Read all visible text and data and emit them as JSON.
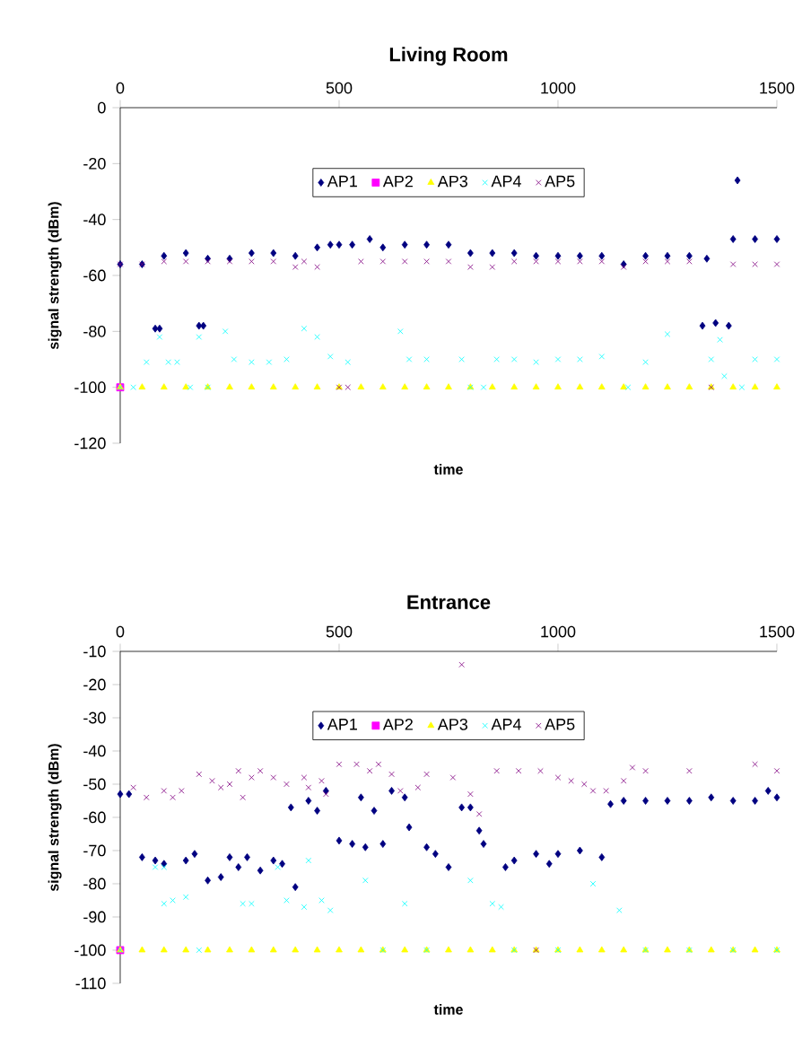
{
  "chart_data": [
    {
      "type": "scatter",
      "title": "Living Room",
      "xlabel": "time",
      "ylabel": "signal strength (dBm)",
      "xlim": [
        0,
        1500
      ],
      "xticks": [
        0,
        500,
        1000,
        1500
      ],
      "ylim": [
        -120,
        0
      ],
      "yticks": [
        -120,
        -100,
        -80,
        -60,
        -40,
        -20,
        0
      ],
      "legend": "top",
      "series": [
        {
          "name": "AP1",
          "color": "#000080",
          "marker": "diamond",
          "x": [
            0,
            50,
            100,
            150,
            200,
            250,
            300,
            350,
            400,
            450,
            480,
            500,
            530,
            570,
            600,
            650,
            700,
            750,
            800,
            850,
            900,
            950,
            1000,
            1050,
            1100,
            1150,
            1200,
            1250,
            1300,
            1340,
            1400,
            1450,
            1500,
            1410,
            80,
            90,
            180,
            190,
            1330,
            1360,
            1390
          ],
          "values": [
            -56,
            -56,
            -53,
            -52,
            -54,
            -54,
            -52,
            -52,
            -53,
            -50,
            -49,
            -49,
            -49,
            -47,
            -50,
            -49,
            -49,
            -49,
            -52,
            -52,
            -52,
            -53,
            -53,
            -53,
            -53,
            -56,
            -53,
            -53,
            -53,
            -54,
            -47,
            -47,
            -47,
            -26,
            -79,
            -79,
            -78,
            -78,
            -78,
            -77,
            -78
          ]
        },
        {
          "name": "AP2",
          "color": "#ff00ff",
          "marker": "square",
          "x": [
            0
          ],
          "values": [
            -100
          ]
        },
        {
          "name": "AP3",
          "color": "#ffff00",
          "marker": "triangle",
          "x": [
            0,
            50,
            100,
            150,
            200,
            250,
            300,
            350,
            400,
            450,
            500,
            550,
            600,
            650,
            700,
            750,
            800,
            850,
            900,
            950,
            1000,
            1050,
            1100,
            1150,
            1200,
            1250,
            1300,
            1350,
            1400,
            1450,
            1500
          ],
          "values": [
            -100,
            -100,
            -100,
            -100,
            -100,
            -100,
            -100,
            -100,
            -100,
            -100,
            -100,
            -100,
            -100,
            -100,
            -100,
            -100,
            -100,
            -100,
            -100,
            -100,
            -100,
            -100,
            -100,
            -100,
            -100,
            -100,
            -100,
            -100,
            -100,
            -100,
            -100
          ]
        },
        {
          "name": "AP4",
          "color": "#00ffff",
          "marker": "cross",
          "x": [
            0,
            30,
            60,
            90,
            110,
            130,
            160,
            180,
            200,
            240,
            260,
            300,
            340,
            380,
            420,
            450,
            480,
            520,
            640,
            660,
            700,
            780,
            800,
            830,
            860,
            900,
            950,
            1000,
            1050,
            1100,
            1160,
            1200,
            1250,
            1350,
            1370,
            1380,
            1420,
            1450,
            1500
          ],
          "values": [
            -100,
            -100,
            -91,
            -82,
            -91,
            -91,
            -100,
            -82,
            -100,
            -80,
            -90,
            -91,
            -91,
            -90,
            -79,
            -82,
            -89,
            -91,
            -80,
            -90,
            -90,
            -90,
            -100,
            -100,
            -90,
            -90,
            -91,
            -90,
            -90,
            -89,
            -100,
            -91,
            -81,
            -90,
            -83,
            -96,
            -100,
            -90,
            -90
          ]
        },
        {
          "name": "AP5",
          "color": "#800080",
          "marker": "cross",
          "x": [
            0,
            50,
            100,
            150,
            200,
            250,
            300,
            350,
            400,
            420,
            450,
            500,
            520,
            550,
            600,
            650,
            700,
            750,
            800,
            850,
            900,
            950,
            1000,
            1050,
            1100,
            1150,
            1200,
            1250,
            1300,
            1350,
            1400,
            1450,
            1500
          ],
          "values": [
            -56,
            -56,
            -55,
            -55,
            -55,
            -55,
            -55,
            -55,
            -57,
            -55,
            -57,
            -100,
            -100,
            -55,
            -55,
            -55,
            -55,
            -55,
            -57,
            -57,
            -55,
            -55,
            -55,
            -55,
            -55,
            -57,
            -55,
            -55,
            -55,
            -100,
            -56,
            -56,
            -56
          ]
        }
      ]
    },
    {
      "type": "scatter",
      "title": "Entrance",
      "xlabel": "time",
      "ylabel": "signal strength (dBm)",
      "xlim": [
        0,
        1500
      ],
      "xticks": [
        0,
        500,
        1000,
        1500
      ],
      "ylim": [
        -110,
        -10
      ],
      "yticks": [
        -110,
        -100,
        -90,
        -80,
        -70,
        -60,
        -50,
        -40,
        -30,
        -20,
        -10
      ],
      "legend": "top",
      "series": [
        {
          "name": "AP1",
          "color": "#000080",
          "marker": "diamond",
          "x": [
            0,
            20,
            50,
            80,
            100,
            150,
            170,
            200,
            230,
            250,
            270,
            290,
            320,
            350,
            370,
            390,
            400,
            430,
            450,
            470,
            500,
            530,
            560,
            600,
            550,
            580,
            620,
            650,
            660,
            700,
            720,
            750,
            780,
            800,
            820,
            830,
            880,
            900,
            950,
            980,
            1000,
            1050,
            1100,
            1120,
            1150,
            1200,
            1250,
            1300,
            1350,
            1400,
            1450,
            1480,
            1500
          ],
          "values": [
            -53,
            -53,
            -72,
            -73,
            -74,
            -73,
            -71,
            -79,
            -78,
            -72,
            -75,
            -72,
            -76,
            -73,
            -74,
            -57,
            -81,
            -55,
            -58,
            -52,
            -67,
            -68,
            -69,
            -68,
            -54,
            -58,
            -52,
            -54,
            -63,
            -69,
            -71,
            -75,
            -57,
            -57,
            -64,
            -68,
            -75,
            -73,
            -71,
            -74,
            -71,
            -70,
            -72,
            -56,
            -55,
            -55,
            -55,
            -55,
            -54,
            -55,
            -55,
            -52,
            -54
          ]
        },
        {
          "name": "AP2",
          "color": "#ff00ff",
          "marker": "square",
          "x": [
            0
          ],
          "values": [
            -100
          ]
        },
        {
          "name": "AP3",
          "color": "#ffff00",
          "marker": "triangle",
          "x": [
            0,
            50,
            100,
            150,
            200,
            250,
            300,
            350,
            400,
            450,
            500,
            550,
            600,
            650,
            700,
            750,
            800,
            850,
            900,
            950,
            1000,
            1050,
            1100,
            1150,
            1200,
            1250,
            1300,
            1350,
            1400,
            1450,
            1500
          ],
          "values": [
            -100,
            -100,
            -100,
            -100,
            -100,
            -100,
            -100,
            -100,
            -100,
            -100,
            -100,
            -100,
            -100,
            -100,
            -100,
            -100,
            -100,
            -100,
            -100,
            -100,
            -100,
            -100,
            -100,
            -100,
            -100,
            -100,
            -100,
            -100,
            -100,
            -100,
            -100
          ]
        },
        {
          "name": "AP4",
          "color": "#00ffff",
          "marker": "cross",
          "x": [
            0,
            80,
            100,
            100,
            120,
            150,
            180,
            280,
            300,
            360,
            380,
            420,
            430,
            460,
            480,
            560,
            600,
            650,
            700,
            800,
            850,
            870,
            900,
            1000,
            1080,
            1140,
            1200,
            1300,
            1400,
            1500
          ],
          "values": [
            -100,
            -75,
            -75,
            -86,
            -85,
            -84,
            -100,
            -86,
            -86,
            -75,
            -85,
            -87,
            -73,
            -85,
            -88,
            -79,
            -100,
            -86,
            -100,
            -79,
            -86,
            -87,
            -100,
            -100,
            -80,
            -88,
            -100,
            -100,
            -100,
            -100
          ]
        },
        {
          "name": "AP5",
          "color": "#800080",
          "marker": "cross",
          "x": [
            30,
            60,
            100,
            120,
            140,
            180,
            210,
            230,
            250,
            270,
            280,
            300,
            320,
            350,
            380,
            420,
            430,
            460,
            470,
            500,
            540,
            570,
            590,
            620,
            640,
            680,
            700,
            760,
            780,
            800,
            820,
            860,
            910,
            960,
            1000,
            1030,
            1060,
            1080,
            1110,
            1150,
            1170,
            1200,
            1300,
            1450,
            1500,
            950
          ],
          "values": [
            -51,
            -54,
            -52,
            -54,
            -52,
            -47,
            -49,
            -51,
            -50,
            -46,
            -54,
            -48,
            -46,
            -48,
            -50,
            -48,
            -51,
            -49,
            -53,
            -44,
            -44,
            -46,
            -44,
            -47,
            -52,
            -51,
            -47,
            -48,
            -14,
            -53,
            -59,
            -46,
            -46,
            -46,
            -48,
            -49,
            -50,
            -52,
            -52,
            -49,
            -45,
            -46,
            -46,
            -44,
            -46,
            -100
          ]
        }
      ]
    }
  ]
}
